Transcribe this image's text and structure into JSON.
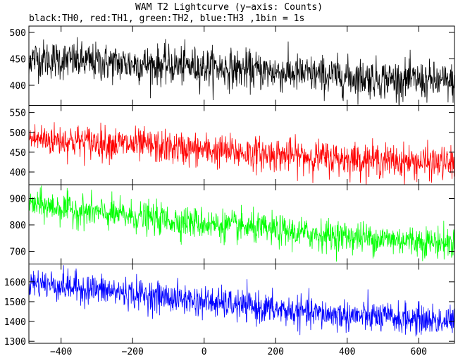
{
  "chart_data": [
    {
      "type": "line",
      "title": "WAM T2 Lightcurve (y−axis: Counts)",
      "subtitle": "black:TH0, red:TH1, green:TH2, blue:TH3 ,1bin = 1s",
      "series": [
        {
          "name": "TH0",
          "color": "#000000",
          "ylim": [
            362,
            512
          ],
          "yticks": [
            400,
            450,
            500
          ],
          "trend": {
            "x": [
              -500,
              -300,
              0,
              300,
              700
            ],
            "y": [
              452,
              443,
              435,
              420,
              405
            ]
          },
          "noise": 26
        },
        {
          "name": "TH1",
          "color": "#ff0000",
          "ylim": [
            368,
            568
          ],
          "yticks": [
            400,
            450,
            500,
            550
          ],
          "trend": {
            "x": [
              -500,
              -300,
              0,
              300,
              700
            ],
            "y": [
              485,
              475,
              455,
              438,
              420
            ]
          },
          "noise": 30
        },
        {
          "name": "TH2",
          "color": "#00ff00",
          "ylim": [
            652,
            952
          ],
          "yticks": [
            700,
            800,
            900
          ],
          "trend": {
            "x": [
              -500,
              -300,
              0,
              300,
              700
            ],
            "y": [
              880,
              845,
              805,
              765,
              730
            ]
          },
          "noise": 42
        },
        {
          "name": "TH3",
          "color": "#0000ff",
          "ylim": [
            1290,
            1690
          ],
          "yticks": [
            1300,
            1400,
            1500,
            1600
          ],
          "trend": {
            "x": [
              -500,
              -300,
              0,
              300,
              700
            ],
            "y": [
              1600,
              1560,
              1500,
              1440,
              1400
            ]
          },
          "noise": 55
        }
      ],
      "x_range": [
        -500,
        700
      ],
      "x_bin": 1,
      "xticks": [
        -400,
        -200,
        0,
        200,
        400,
        600
      ],
      "xlim": [
        -490,
        700
      ]
    }
  ]
}
